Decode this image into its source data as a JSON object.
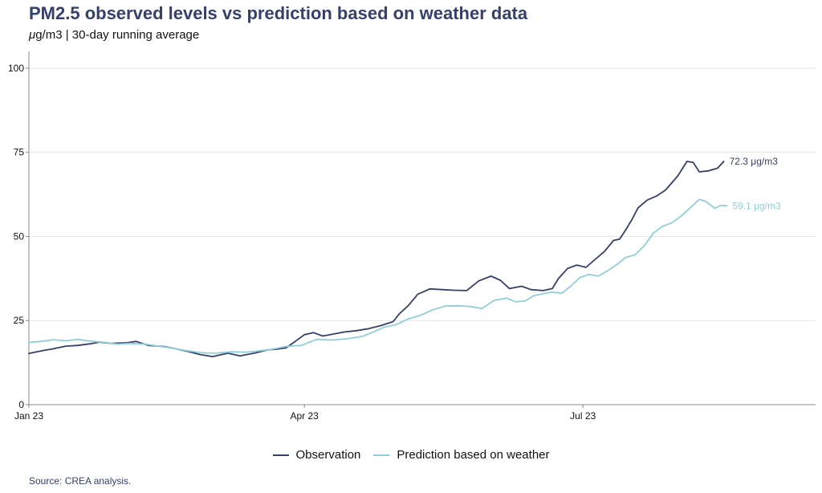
{
  "header": {
    "title": "PM2.5 observed levels vs prediction based on weather data",
    "subtitle_mu": "μ",
    "subtitle_rest": "g/m3 | 30-day running average"
  },
  "source": "Source: CREA analysis.",
  "colors": {
    "observation": "#35406b",
    "prediction": "#90cfd9",
    "grid": "#e5e5e5",
    "axis": "#888888"
  },
  "chart_data": {
    "type": "line",
    "title": "PM2.5 observed levels vs prediction based on weather data",
    "subtitle": "μg/m3 | 30-day running average",
    "x_axis": {
      "type": "date",
      "range": [
        "2023-01-01",
        "2023-09-15"
      ],
      "ticks": [
        {
          "date": "2023-01-01",
          "label": "Jan 23"
        },
        {
          "date": "2023-04-01",
          "label": "Apr 23"
        },
        {
          "date": "2023-07-01",
          "label": "Jul 23"
        }
      ]
    },
    "y_axis": {
      "range": [
        0,
        105
      ],
      "ticks": [
        0,
        25,
        50,
        75,
        100
      ]
    },
    "grid": true,
    "legend_position": "bottom",
    "series": [
      {
        "name": "Observation",
        "color": "#35406b",
        "end_label": "72.3 μg/m3",
        "points": [
          [
            "2023-01-01",
            15.2
          ],
          [
            "2023-01-05",
            16.0
          ],
          [
            "2023-01-09",
            16.6
          ],
          [
            "2023-01-13",
            17.4
          ],
          [
            "2023-01-17",
            17.6
          ],
          [
            "2023-01-21",
            18.1
          ],
          [
            "2023-01-24",
            18.6
          ],
          [
            "2023-01-28",
            18.2
          ],
          [
            "2023-02-02",
            18.4
          ],
          [
            "2023-02-05",
            18.8
          ],
          [
            "2023-02-09",
            17.6
          ],
          [
            "2023-02-14",
            17.3
          ],
          [
            "2023-02-18",
            16.6
          ],
          [
            "2023-02-22",
            15.8
          ],
          [
            "2023-02-26",
            14.9
          ],
          [
            "2023-03-02",
            14.3
          ],
          [
            "2023-03-07",
            15.3
          ],
          [
            "2023-03-11",
            14.5
          ],
          [
            "2023-03-16",
            15.4
          ],
          [
            "2023-03-20",
            16.3
          ],
          [
            "2023-03-23",
            16.5
          ],
          [
            "2023-03-26",
            16.9
          ],
          [
            "2023-03-29",
            18.8
          ],
          [
            "2023-04-01",
            20.8
          ],
          [
            "2023-04-04",
            21.4
          ],
          [
            "2023-04-07",
            20.4
          ],
          [
            "2023-04-10",
            20.9
          ],
          [
            "2023-04-14",
            21.6
          ],
          [
            "2023-04-18",
            22.0
          ],
          [
            "2023-04-22",
            22.6
          ],
          [
            "2023-04-26",
            23.5
          ],
          [
            "2023-04-30",
            24.7
          ],
          [
            "2023-05-02",
            27.0
          ],
          [
            "2023-05-05",
            29.5
          ],
          [
            "2023-05-08",
            32.8
          ],
          [
            "2023-05-12",
            34.4
          ],
          [
            "2023-05-16",
            34.2
          ],
          [
            "2023-05-20",
            34.0
          ],
          [
            "2023-05-24",
            33.9
          ],
          [
            "2023-05-28",
            36.8
          ],
          [
            "2023-06-01",
            38.2
          ],
          [
            "2023-06-04",
            37.0
          ],
          [
            "2023-06-07",
            34.5
          ],
          [
            "2023-06-11",
            35.2
          ],
          [
            "2023-06-14",
            34.2
          ],
          [
            "2023-06-18",
            33.9
          ],
          [
            "2023-06-21",
            34.5
          ],
          [
            "2023-06-23",
            37.5
          ],
          [
            "2023-06-26",
            40.5
          ],
          [
            "2023-06-29",
            41.5
          ],
          [
            "2023-07-02",
            40.8
          ],
          [
            "2023-07-05",
            43.2
          ],
          [
            "2023-07-08",
            45.5
          ],
          [
            "2023-07-11",
            48.8
          ],
          [
            "2023-07-13",
            49.2
          ],
          [
            "2023-07-15",
            52.0
          ],
          [
            "2023-07-17",
            55.0
          ],
          [
            "2023-07-19",
            58.5
          ],
          [
            "2023-07-22",
            60.8
          ],
          [
            "2023-07-25",
            62.0
          ],
          [
            "2023-07-28",
            63.8
          ],
          [
            "2023-08-01",
            68.0
          ],
          [
            "2023-08-04",
            72.3
          ],
          [
            "2023-08-06",
            72.0
          ],
          [
            "2023-08-08",
            69.2
          ],
          [
            "2023-08-11",
            69.5
          ],
          [
            "2023-08-14",
            70.3
          ],
          [
            "2023-08-16",
            72.3
          ]
        ]
      },
      {
        "name": "Prediction based on weather",
        "color": "#90cfd9",
        "end_label": "59.1 μg/m3",
        "points": [
          [
            "2023-01-01",
            18.5
          ],
          [
            "2023-01-05",
            18.8
          ],
          [
            "2023-01-09",
            19.3
          ],
          [
            "2023-01-13",
            19.0
          ],
          [
            "2023-01-17",
            19.4
          ],
          [
            "2023-01-21",
            18.9
          ],
          [
            "2023-01-25",
            18.6
          ],
          [
            "2023-01-30",
            18.0
          ],
          [
            "2023-02-03",
            18.2
          ],
          [
            "2023-02-08",
            18.0
          ],
          [
            "2023-02-13",
            17.3
          ],
          [
            "2023-02-18",
            16.6
          ],
          [
            "2023-02-22",
            16.0
          ],
          [
            "2023-02-27",
            15.4
          ],
          [
            "2023-03-03",
            15.3
          ],
          [
            "2023-03-08",
            15.7
          ],
          [
            "2023-03-13",
            15.6
          ],
          [
            "2023-03-17",
            16.0
          ],
          [
            "2023-03-21",
            16.4
          ],
          [
            "2023-03-26",
            17.3
          ],
          [
            "2023-03-31",
            17.6
          ],
          [
            "2023-04-05",
            19.4
          ],
          [
            "2023-04-10",
            19.2
          ],
          [
            "2023-04-15",
            19.6
          ],
          [
            "2023-04-20",
            20.3
          ],
          [
            "2023-04-23",
            21.4
          ],
          [
            "2023-04-27",
            23.0
          ],
          [
            "2023-05-01",
            23.8
          ],
          [
            "2023-05-05",
            25.5
          ],
          [
            "2023-05-09",
            26.6
          ],
          [
            "2023-05-13",
            28.2
          ],
          [
            "2023-05-17",
            29.3
          ],
          [
            "2023-05-21",
            29.4
          ],
          [
            "2023-05-25",
            29.2
          ],
          [
            "2023-05-29",
            28.6
          ],
          [
            "2023-06-02",
            31.0
          ],
          [
            "2023-06-06",
            31.7
          ],
          [
            "2023-06-09",
            30.6
          ],
          [
            "2023-06-12",
            30.8
          ],
          [
            "2023-06-15",
            32.4
          ],
          [
            "2023-06-18",
            33.0
          ],
          [
            "2023-06-21",
            33.5
          ],
          [
            "2023-06-24",
            33.1
          ],
          [
            "2023-06-27",
            35.2
          ],
          [
            "2023-06-30",
            37.8
          ],
          [
            "2023-07-03",
            38.7
          ],
          [
            "2023-07-06",
            38.2
          ],
          [
            "2023-07-09",
            39.8
          ],
          [
            "2023-07-12",
            41.6
          ],
          [
            "2023-07-15",
            43.8
          ],
          [
            "2023-07-18",
            44.5
          ],
          [
            "2023-07-21",
            47.2
          ],
          [
            "2023-07-24",
            51.0
          ],
          [
            "2023-07-27",
            53.0
          ],
          [
            "2023-07-30",
            54.0
          ],
          [
            "2023-08-02",
            56.0
          ],
          [
            "2023-08-05",
            58.5
          ],
          [
            "2023-08-08",
            61.0
          ],
          [
            "2023-08-10",
            60.5
          ],
          [
            "2023-08-13",
            58.4
          ],
          [
            "2023-08-15",
            59.2
          ],
          [
            "2023-08-17",
            59.1
          ]
        ]
      }
    ]
  }
}
